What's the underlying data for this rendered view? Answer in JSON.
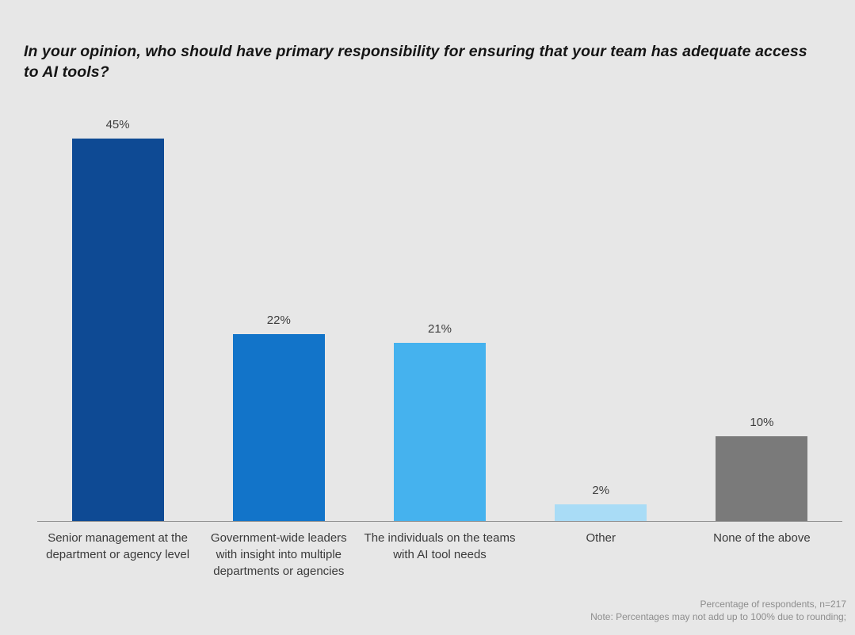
{
  "title": "In your opinion, who should have primary responsibility for ensuring that your team has adequate access to AI tools?",
  "chart_data": {
    "type": "bar",
    "title": "In your opinion, who should have primary responsibility for ensuring that your team has adequate access to AI tools?",
    "categories": [
      "Senior management at the department or agency level",
      "Government-wide leaders with insight into multiple departments or agencies",
      "The individuals on the teams with AI tool needs",
      "Other",
      "None of the above"
    ],
    "values": [
      45,
      22,
      21,
      2,
      10
    ],
    "value_labels": [
      "45%",
      "22%",
      "21%",
      "2%",
      "10%"
    ],
    "bar_colors": [
      "#0e4a94",
      "#1274c9",
      "#45b2ee",
      "#a9dcf6",
      "#7a7a7a"
    ],
    "unit": "%",
    "xlabel": "",
    "ylabel": "",
    "ylim": [
      0,
      50
    ],
    "grid": false,
    "legend": "none",
    "background_color": "#e7e7e7"
  },
  "footnotes": [
    "Percentage of respondents, n=217",
    "Note: Percentages may not add up to 100% due to rounding;"
  ]
}
